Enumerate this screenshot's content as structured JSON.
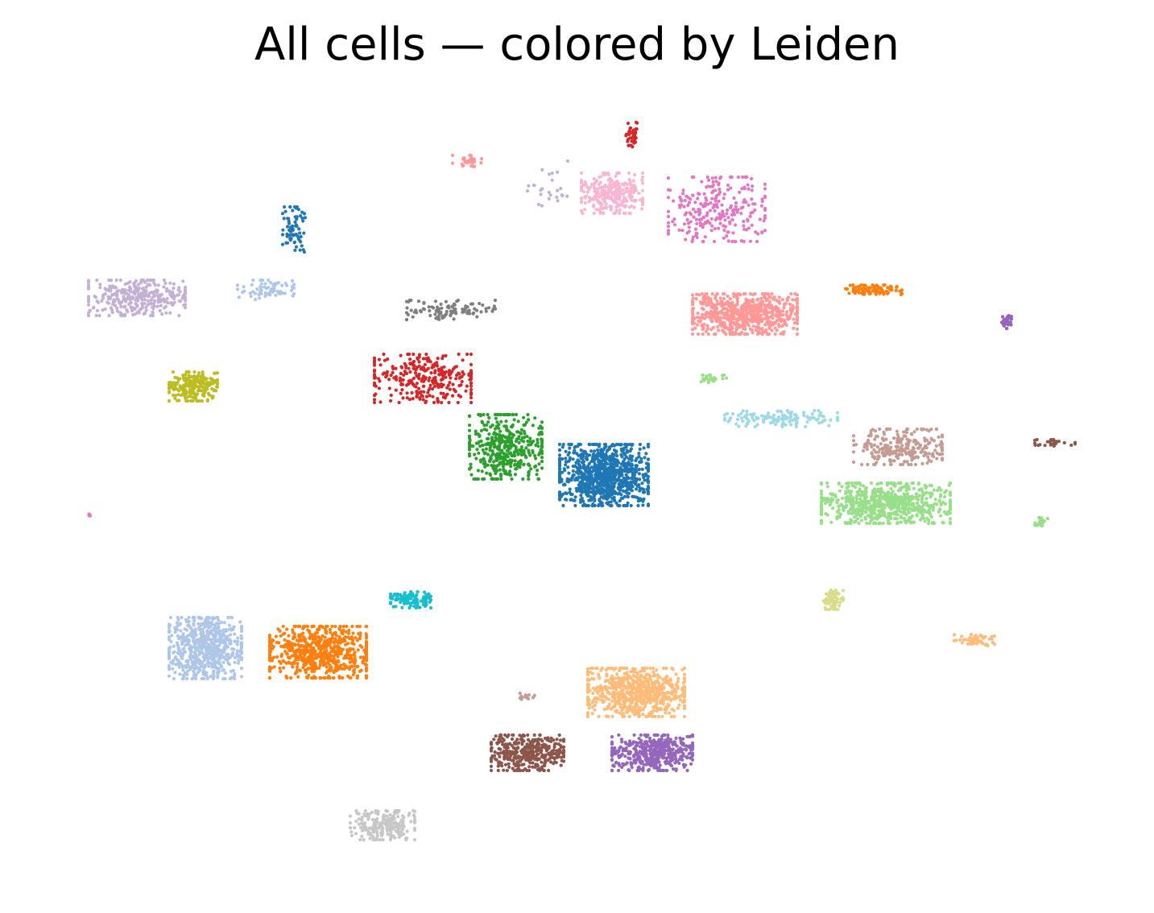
{
  "chart_data": {
    "type": "scatter",
    "title": "All cells — colored by Leiden",
    "xlabel": "",
    "ylabel": "",
    "axes_visible": false,
    "grid": false,
    "legend": "none",
    "clusters": [
      {
        "color": "#1f77b4",
        "center": [
          750,
          590
        ],
        "spread": [
          55,
          38
        ],
        "count": 900
      },
      {
        "color": "#1f77b4",
        "center": [
          365,
          285
        ],
        "spread": [
          14,
          28
        ],
        "count": 70
      },
      {
        "color": "#2ca02c",
        "center": [
          628,
          555
        ],
        "spread": [
          45,
          40
        ],
        "count": 420
      },
      {
        "color": "#d62728",
        "center": [
          525,
          470
        ],
        "spread": [
          60,
          30
        ],
        "count": 300
      },
      {
        "color": "#d62728",
        "center": [
          785,
          170
        ],
        "spread": [
          8,
          18
        ],
        "count": 40
      },
      {
        "color": "#7f7f7f",
        "center": [
          560,
          385
        ],
        "spread": [
          55,
          12
        ],
        "count": 110
      },
      {
        "color": "#c5b0d5",
        "center": [
          170,
          370
        ],
        "spread": [
          60,
          22
        ],
        "count": 320
      },
      {
        "color": "#c5b0d5",
        "center": [
          680,
          235
        ],
        "spread": [
          25,
          35
        ],
        "count": 25
      },
      {
        "color": "#aec7e8",
        "center": [
          330,
          360
        ],
        "spread": [
          35,
          12
        ],
        "count": 70
      },
      {
        "color": "#bcbd22",
        "center": [
          240,
          480
        ],
        "spread": [
          30,
          18
        ],
        "count": 230
      },
      {
        "color": "#ff9896",
        "center": [
          925,
          390
        ],
        "spread": [
          65,
          25
        ],
        "count": 650
      },
      {
        "color": "#ff9896",
        "center": [
          580,
          200
        ],
        "spread": [
          18,
          7
        ],
        "count": 30
      },
      {
        "color": "#f7b6d2",
        "center": [
          760,
          240
        ],
        "spread": [
          38,
          25
        ],
        "count": 280
      },
      {
        "color": "#e377c2",
        "center": [
          890,
          260
        ],
        "spread": [
          60,
          40
        ],
        "count": 260
      },
      {
        "color": "#ff7f0e",
        "center": [
          1085,
          360
        ],
        "spread": [
          35,
          6
        ],
        "count": 90
      },
      {
        "color": "#9467bd",
        "center": [
          1250,
          400
        ],
        "spread": [
          6,
          8
        ],
        "count": 40
      },
      {
        "color": "#9edae5",
        "center": [
          970,
          520
        ],
        "spread": [
          70,
          10
        ],
        "count": 130
      },
      {
        "color": "#c49c94",
        "center": [
          1115,
          555
        ],
        "spread": [
          55,
          22
        ],
        "count": 260
      },
      {
        "color": "#8c564b",
        "center": [
          1310,
          550
        ],
        "spread": [
          25,
          4
        ],
        "count": 30
      },
      {
        "color": "#98df8a",
        "center": [
          1100,
          625
        ],
        "spread": [
          80,
          25
        ],
        "count": 700
      },
      {
        "color": "#98df8a",
        "center": [
          1293,
          648
        ],
        "spread": [
          8,
          5
        ],
        "count": 20
      },
      {
        "color": "#98df8a",
        "center": [
          885,
          470
        ],
        "spread": [
          20,
          5
        ],
        "count": 25
      },
      {
        "color": "#e377c2",
        "center": [
          112,
          640
        ],
        "spread": [
          3,
          2
        ],
        "count": 6
      },
      {
        "color": "#aec7e8",
        "center": [
          255,
          805
        ],
        "spread": [
          45,
          38
        ],
        "count": 650
      },
      {
        "color": "#ff7f0e",
        "center": [
          395,
          810
        ],
        "spread": [
          60,
          32
        ],
        "count": 650
      },
      {
        "color": "#17becf",
        "center": [
          510,
          745
        ],
        "spread": [
          25,
          10
        ],
        "count": 110
      },
      {
        "color": "#dbdb8d",
        "center": [
          1035,
          745
        ],
        "spread": [
          12,
          12
        ],
        "count": 90
      },
      {
        "color": "#ffbb78",
        "center": [
          1210,
          795
        ],
        "spread": [
          25,
          7
        ],
        "count": 50
      },
      {
        "color": "#ffbb78",
        "center": [
          790,
          860
        ],
        "spread": [
          60,
          30
        ],
        "count": 680
      },
      {
        "color": "#9467bd",
        "center": [
          810,
          935
        ],
        "spread": [
          50,
          22
        ],
        "count": 450
      },
      {
        "color": "#8c564b",
        "center": [
          655,
          935
        ],
        "spread": [
          45,
          22
        ],
        "count": 380
      },
      {
        "color": "#c49c94",
        "center": [
          655,
          865
        ],
        "spread": [
          10,
          4
        ],
        "count": 15
      },
      {
        "color": "#c7c7c7",
        "center": [
          475,
          1025
        ],
        "spread": [
          40,
          18
        ],
        "count": 220
      }
    ]
  }
}
